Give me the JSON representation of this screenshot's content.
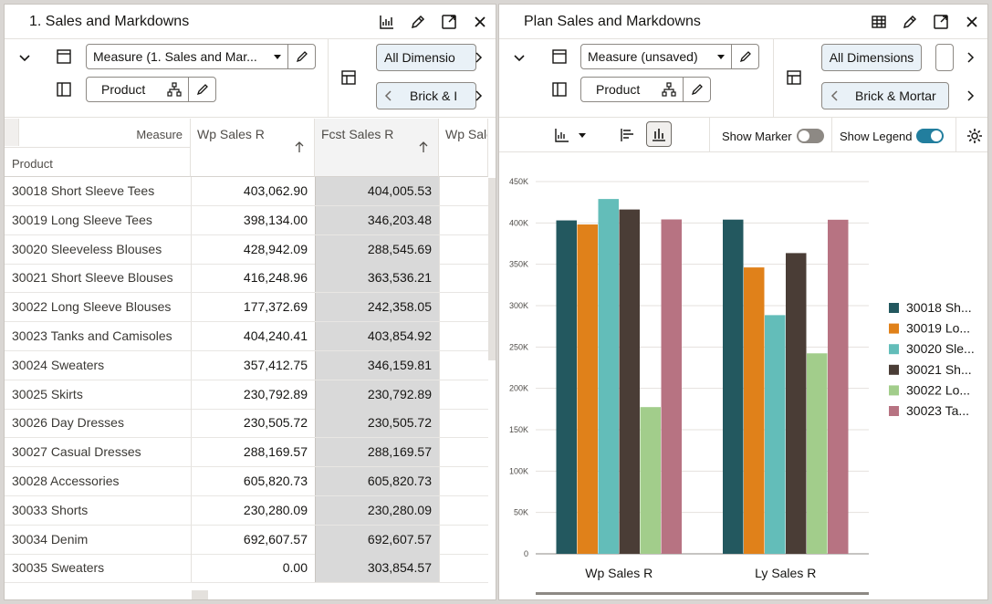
{
  "left": {
    "title": "1. Sales and Markdowns",
    "measure_label": "Measure (1. Sales and Mar...",
    "product_label": "Product",
    "tab_dimensions": "All Dimensio",
    "tab_location": "Brick & I",
    "header_measure": "Measure",
    "header_product": "Product",
    "columns": [
      "Wp Sales R",
      "Fcst Sales R",
      "Wp Sale"
    ],
    "rows": [
      {
        "name": "30018 Short Sleeve Tees",
        "wp": "403,062.90",
        "fcst": "404,005.53"
      },
      {
        "name": "30019 Long Sleeve Tees",
        "wp": "398,134.00",
        "fcst": "346,203.48"
      },
      {
        "name": "30020 Sleeveless Blouses",
        "wp": "428,942.09",
        "fcst": "288,545.69"
      },
      {
        "name": "30021 Short Sleeve Blouses",
        "wp": "416,248.96",
        "fcst": "363,536.21"
      },
      {
        "name": "30022 Long Sleeve Blouses",
        "wp": "177,372.69",
        "fcst": "242,358.05"
      },
      {
        "name": "30023 Tanks and Camisoles",
        "wp": "404,240.41",
        "fcst": "403,854.92"
      },
      {
        "name": "30024 Sweaters",
        "wp": "357,412.75",
        "fcst": "346,159.81"
      },
      {
        "name": "30025 Skirts",
        "wp": "230,792.89",
        "fcst": "230,792.89"
      },
      {
        "name": "30026 Day Dresses",
        "wp": "230,505.72",
        "fcst": "230,505.72"
      },
      {
        "name": "30027 Casual Dresses",
        "wp": "288,169.57",
        "fcst": "288,169.57"
      },
      {
        "name": "30028 Accessories",
        "wp": "605,820.73",
        "fcst": "605,820.73"
      },
      {
        "name": "30033 Shorts",
        "wp": "230,280.09",
        "fcst": "230,280.09"
      },
      {
        "name": "30034 Denim",
        "wp": "692,607.57",
        "fcst": "692,607.57"
      },
      {
        "name": "30035 Sweaters",
        "wp": "0.00",
        "fcst": "303,854.57"
      }
    ]
  },
  "right": {
    "title": "Plan Sales and Markdowns",
    "measure_label": "Measure (unsaved)",
    "product_label": "Product",
    "tab_dimensions": "All Dimensions",
    "tab_location": "Brick & Mortar",
    "show_marker_label": "Show Marker",
    "show_legend_label": "Show Legend",
    "show_marker_on": false,
    "show_legend_on": true
  },
  "chart_data": {
    "type": "bar",
    "categories": [
      "Wp Sales R",
      "Ly Sales R"
    ],
    "series": [
      {
        "name": "30018 Sh...",
        "color": "#23585f",
        "values": [
          403062.9,
          404005.53
        ]
      },
      {
        "name": "30019 Lo...",
        "color": "#e0811a",
        "values": [
          398134.0,
          346203.48
        ]
      },
      {
        "name": "30020 Sle...",
        "color": "#63bdb9",
        "values": [
          428942.09,
          288545.69
        ]
      },
      {
        "name": "30021 Sh...",
        "color": "#4a3d36",
        "values": [
          416248.96,
          363536.21
        ]
      },
      {
        "name": "30022 Lo...",
        "color": "#a2cd8b",
        "values": [
          177372.69,
          242358.05
        ]
      },
      {
        "name": "30023 Ta...",
        "color": "#b77382",
        "values": [
          404240.41,
          403854.92
        ]
      }
    ],
    "yticks": [
      "0",
      "50K",
      "100K",
      "150K",
      "200K",
      "250K",
      "300K",
      "350K",
      "400K",
      "450K"
    ],
    "ylim": [
      0,
      450000
    ],
    "legend_position": "right"
  }
}
